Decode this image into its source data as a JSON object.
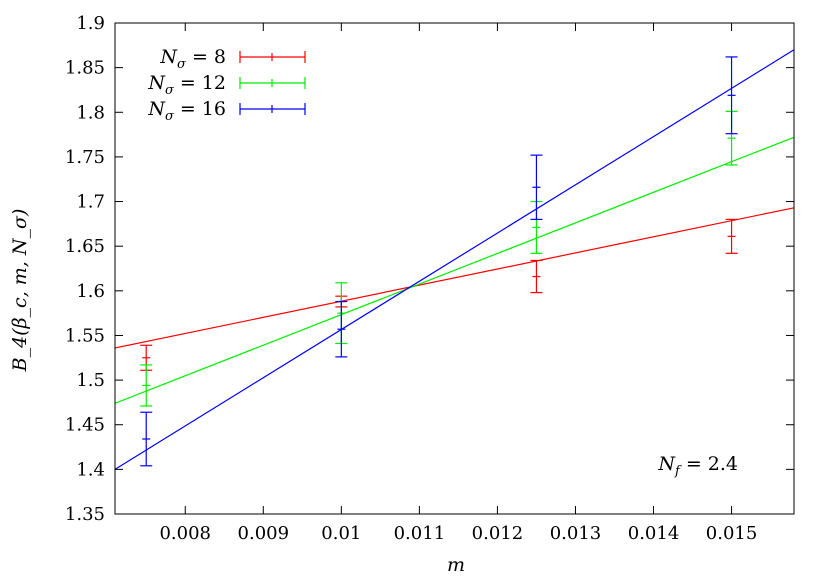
{
  "chart_data": {
    "type": "scatter",
    "title": "",
    "xlabel": "m",
    "ylabel": "B_4(β_c, m, N_σ)",
    "xlim": [
      0.0071,
      0.0158
    ],
    "ylim": [
      1.35,
      1.9
    ],
    "x_ticks": [
      0.008,
      0.009,
      0.01,
      0.011,
      0.012,
      0.013,
      0.014,
      0.015
    ],
    "x_tick_labels": [
      "0.008",
      "0.009",
      "0.01",
      "0.011",
      "0.012",
      "0.013",
      "0.014",
      "0.015"
    ],
    "y_ticks": [
      1.35,
      1.4,
      1.45,
      1.5,
      1.55,
      1.6,
      1.65,
      1.7,
      1.75,
      1.8,
      1.85,
      1.9
    ],
    "y_tick_labels": [
      "1.35",
      "1.4",
      "1.45",
      "1.5",
      "1.55",
      "1.6",
      "1.65",
      "1.7",
      "1.75",
      "1.8",
      "1.85",
      "1.9"
    ],
    "grid": false,
    "legend_position": "top-left",
    "annotation": {
      "text_main": "N",
      "text_sub": "f",
      "text_rest": " = 2.4"
    },
    "series": [
      {
        "name": "N_σ = 8",
        "legend_main": "N",
        "legend_sub": "σ",
        "legend_rest": " = 8",
        "color": "#ff0000",
        "points": [
          {
            "x": 0.0075,
            "y": 1.525,
            "err": 0.014
          },
          {
            "x": 0.01,
            "y": 1.588,
            "err": 0.006
          },
          {
            "x": 0.0125,
            "y": 1.616,
            "err": 0.018
          },
          {
            "x": 0.015,
            "y": 1.661,
            "err": 0.019
          }
        ],
        "fit": {
          "x": [
            0.0071,
            0.0158
          ],
          "y": [
            1.536,
            1.693
          ]
        }
      },
      {
        "name": "N_σ = 12",
        "legend_main": "N",
        "legend_sub": "σ",
        "legend_rest": " = 12",
        "color": "#00ee00",
        "points": [
          {
            "x": 0.0075,
            "y": 1.494,
            "err": 0.023
          },
          {
            "x": 0.01,
            "y": 1.575,
            "err": 0.034
          },
          {
            "x": 0.0125,
            "y": 1.671,
            "err": 0.029
          },
          {
            "x": 0.015,
            "y": 1.771,
            "err": 0.03
          }
        ],
        "fit": {
          "x": [
            0.0071,
            0.0158
          ],
          "y": [
            1.474,
            1.772
          ]
        }
      },
      {
        "name": "N_σ = 16",
        "legend_main": "N",
        "legend_sub": "σ",
        "legend_rest": " = 16",
        "color": "#0000ff",
        "points": [
          {
            "x": 0.0075,
            "y": 1.434,
            "err": 0.03
          },
          {
            "x": 0.01,
            "y": 1.557,
            "err": 0.031
          },
          {
            "x": 0.0125,
            "y": 1.716,
            "err": 0.036
          },
          {
            "x": 0.015,
            "y": 1.819,
            "err": 0.043
          }
        ],
        "fit": {
          "x": [
            0.0071,
            0.0158
          ],
          "y": [
            1.4,
            1.87
          ]
        }
      }
    ]
  }
}
